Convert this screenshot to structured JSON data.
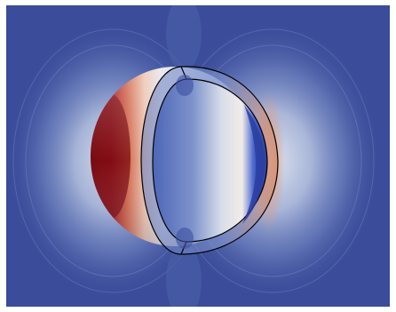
{
  "scene": {
    "colors": {
      "background": "#3a4c9a",
      "field_light": "#dfe6ef",
      "field_mid": "#6e86c4",
      "hot_red": "#8c0f17",
      "warm_orange": "#d8744f",
      "pale": "#eeeae8",
      "cool_blue": "#3b58c9",
      "outline": "#000000"
    }
  }
}
